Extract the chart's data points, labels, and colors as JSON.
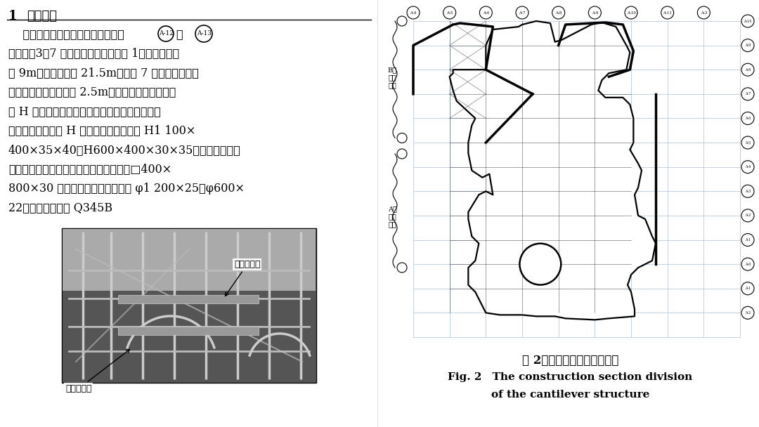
{
  "bg_color": "#ffffff",
  "left_panel": {
    "section_number": "1",
    "section_title": "工程概况",
    "para_lines": [
      "    上海市长宁区来福士广场的北裙房（A-12），（A-13）",
      "轴外侧，3～7 层为悬挤锂结构（见图 1），悬挤长度",
      "为 9m，悬挤结构高 21.5m，其中 7 层处设有纵横向",
      "桁架，桁架高度主要为 2.5m　桁架为平面结构，采",
      "用 H 形和筱形截面杆件　裙房主要为锂框架结构",
      "体系，锂梁主要为 H 型锂梁，主要截面为 H1 100×",
      "400×35×40，H600×400×30×35，锂柱类型主要",
      "为圆管柱与筱形柱，筱形柱的截面尺寸为□400×",
      "800×30 等，圆管柱的截面尺寸为 φ1 200×25，φ600×",
      "22　锂结构材料为 Q345B"
    ],
    "label1": "锂桁架结构",
    "label2": "悬挤锂结构",
    "circled_A12": "A-12",
    "circled_A13": "A-13"
  },
  "right_panel": {
    "fig_label_cn": "图 2　悬挤结构施工区段划分",
    "fig_label_en_line1": "Fig. 2 The construction section division",
    "fig_label_en_line2": "of the cantilever structure",
    "label_B": "B区安装方向",
    "label_A": "A区安装方向"
  },
  "grid_color": "#b8cce4",
  "struct_color": "#000000",
  "photo_bg": "#7a7a7a"
}
